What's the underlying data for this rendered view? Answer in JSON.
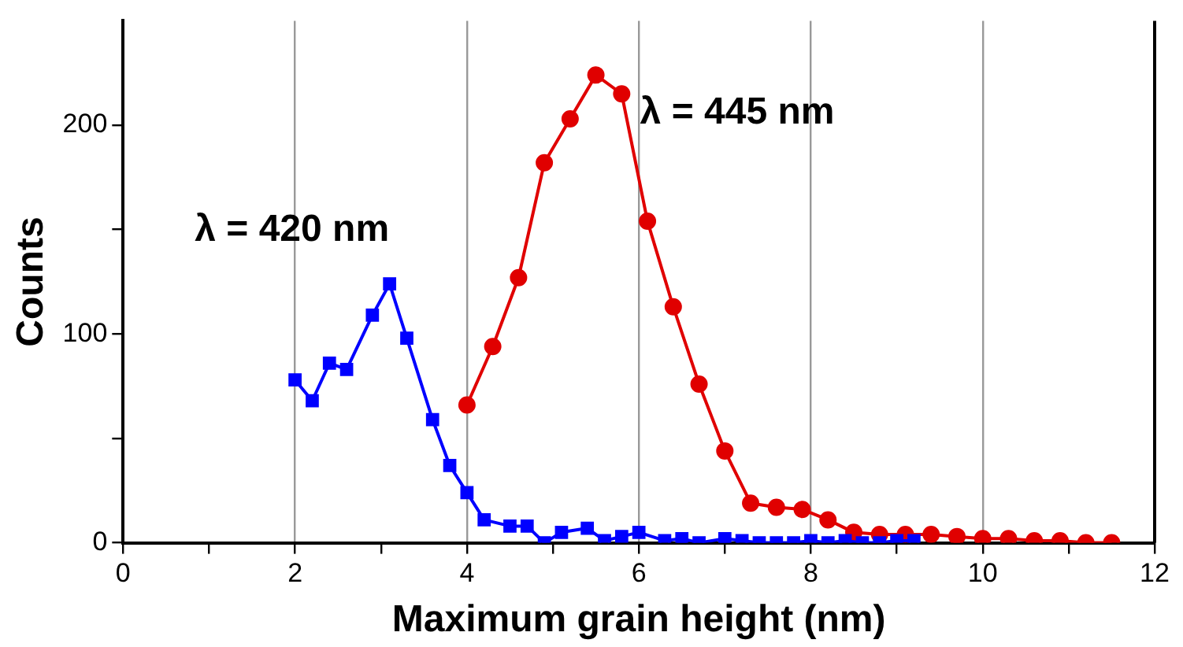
{
  "chart_data": {
    "type": "line",
    "xlabel": "Maximum grain height (nm)",
    "ylabel": "Counts",
    "xlim": [
      0,
      12
    ],
    "xticks": [
      0,
      {
        "value": 1,
        "label": null
      },
      2,
      {
        "value": 3,
        "label": null
      },
      4,
      {
        "value": 5,
        "label": null
      },
      6,
      {
        "value": 7,
        "label": null
      },
      8,
      {
        "value": 9,
        "label": null
      },
      10,
      {
        "value": 11,
        "label": null
      },
      12
    ],
    "ylim": [
      0,
      250
    ],
    "yticks": [
      0,
      {
        "value": 50,
        "label": null
      },
      100,
      {
        "value": 150,
        "label": null
      },
      200
    ],
    "grid": "x",
    "legend": false,
    "line_style": "solid",
    "series": [
      {
        "name": "λ = 420 nm",
        "color": "#0000ff",
        "marker": "square",
        "x": [
          2.0,
          2.2,
          2.4,
          2.6,
          2.9,
          3.1,
          3.3,
          3.6,
          3.8,
          4.0,
          4.2,
          4.5,
          4.7,
          4.9,
          5.1,
          5.4,
          5.6,
          5.8,
          6.0,
          6.3,
          6.5,
          6.7,
          7.0,
          7.2,
          7.4,
          7.6,
          7.8,
          8.0,
          8.2,
          8.4,
          8.6,
          8.8,
          9.0,
          9.2
        ],
        "values": [
          78,
          68,
          86,
          83,
          109,
          124,
          98,
          59,
          37,
          24,
          11,
          8,
          8,
          0,
          5,
          7,
          1,
          3,
          5,
          1,
          2,
          0,
          2,
          1,
          0,
          0,
          0,
          1,
          0,
          1,
          0,
          0,
          1,
          1
        ]
      },
      {
        "name": "λ = 445 nm",
        "color": "#e00000",
        "marker": "circle",
        "x": [
          4.0,
          4.3,
          4.6,
          4.9,
          5.2,
          5.5,
          5.8,
          6.1,
          6.4,
          6.7,
          7.0,
          7.3,
          7.6,
          7.9,
          8.2,
          8.5,
          8.8,
          9.1,
          9.4,
          9.7,
          10.0,
          10.3,
          10.6,
          10.9,
          11.2,
          11.5
        ],
        "values": [
          66,
          94,
          127,
          182,
          203,
          224,
          215,
          154,
          113,
          76,
          44,
          19,
          17,
          16,
          11,
          5,
          4,
          4,
          4,
          3,
          2,
          2,
          1,
          1,
          0,
          0
        ]
      }
    ]
  }
}
